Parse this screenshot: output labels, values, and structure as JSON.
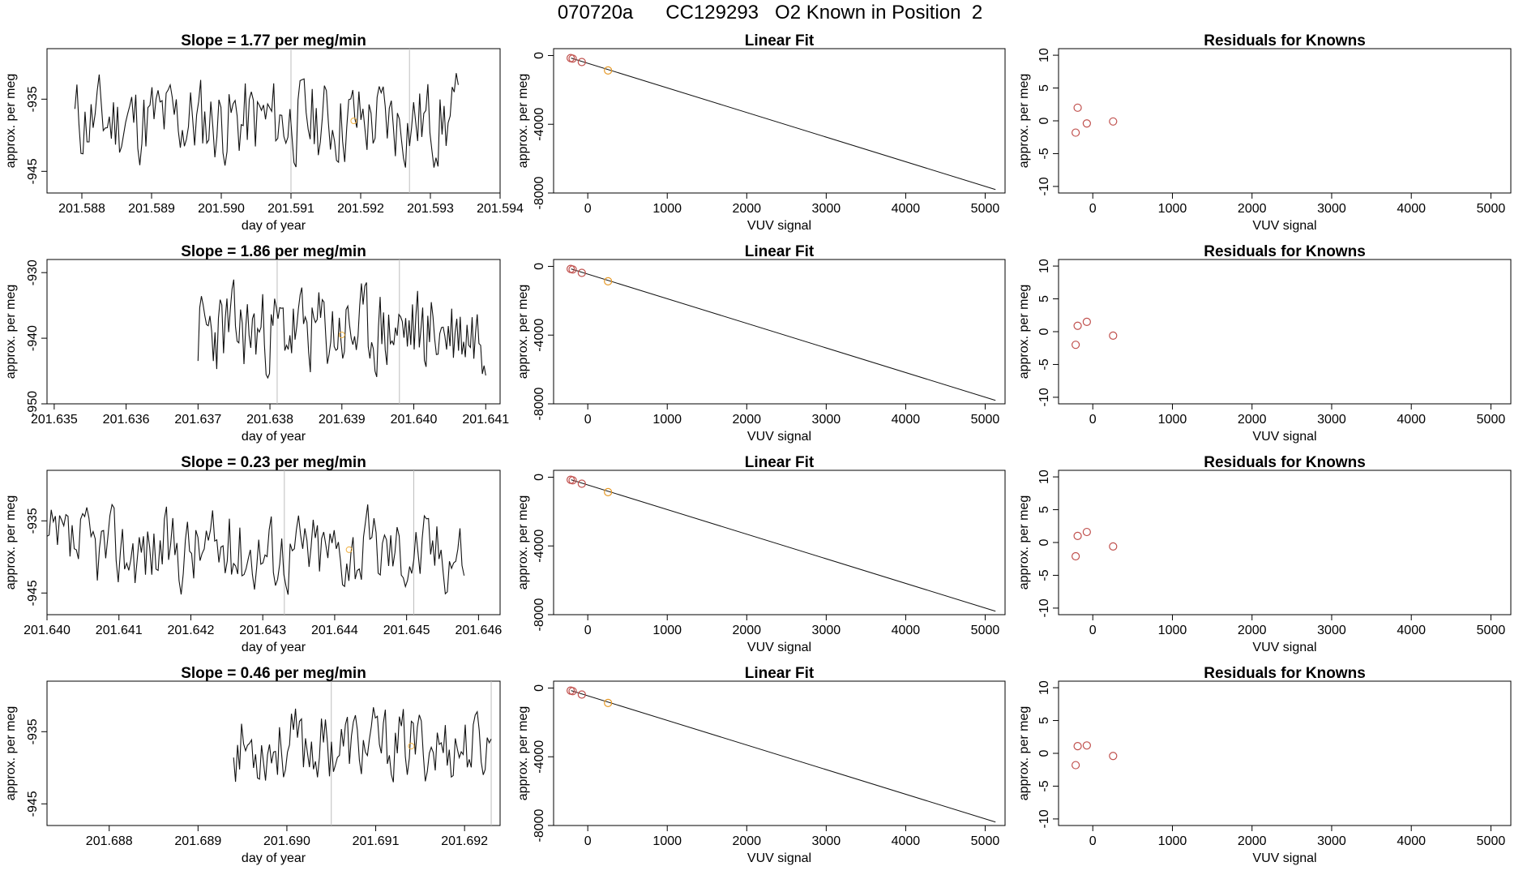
{
  "header": {
    "title": "070720a      CC129293   O2 Known in Position  2"
  },
  "chart_data": [
    {
      "type": "line",
      "panel": "timeseries",
      "row": 1,
      "title": "Slope =  1.77  per meg/min",
      "xlabel": "day of year",
      "ylabel": "approx. per meg",
      "xlim": [
        201.5875,
        201.594
      ],
      "ylim": [
        -948,
        -928
      ],
      "xticks": [
        "201.588",
        "201.589",
        "201.590",
        "201.591",
        "201.592",
        "201.593",
        "201.594"
      ],
      "yticks": [
        "-945",
        "-935"
      ],
      "x_start": 201.5879,
      "x_end": 201.5934,
      "vlines": [
        201.591,
        201.5927
      ],
      "marker": {
        "x": 201.5919,
        "y": -938
      },
      "level": -938,
      "amp": 5.5,
      "seed": 11,
      "n": 190
    },
    {
      "type": "line",
      "panel": "timeseries",
      "row": 2,
      "title": "Slope =  1.86  per meg/min",
      "xlabel": "day of year",
      "ylabel": "approx. per meg",
      "xlim": [
        201.6349,
        201.6412
      ],
      "ylim": [
        -950,
        -928
      ],
      "xticks": [
        "201.635",
        "201.636",
        "201.637",
        "201.638",
        "201.639",
        "201.640",
        "201.641"
      ],
      "yticks": [
        "-950",
        "-940",
        "-930"
      ],
      "x_start": 201.637,
      "x_end": 201.641,
      "vlines": [
        201.6381,
        201.6398
      ],
      "marker": {
        "x": 201.639,
        "y": -939.5
      },
      "level": -939,
      "amp": 6.0,
      "seed": 23,
      "n": 170
    },
    {
      "type": "line",
      "panel": "timeseries",
      "row": 3,
      "title": "Slope =  0.23  per meg/min",
      "xlabel": "day of year",
      "ylabel": "approx. per meg",
      "xlim": [
        201.64,
        201.6463
      ],
      "ylim": [
        -948,
        -928
      ],
      "xticks": [
        "201.640",
        "201.641",
        "201.642",
        "201.643",
        "201.644",
        "201.645",
        "201.646"
      ],
      "yticks": [
        "-945",
        "-935"
      ],
      "x_start": 201.64,
      "x_end": 201.6458,
      "vlines": [
        201.6433,
        201.6451
      ],
      "marker": {
        "x": 201.6442,
        "y": -939
      },
      "level": -939,
      "amp": 5.0,
      "seed": 37,
      "n": 200
    },
    {
      "type": "line",
      "panel": "timeseries",
      "row": 4,
      "title": "Slope =  0.46  per meg/min",
      "xlabel": "day of year",
      "ylabel": "approx. per meg",
      "xlim": [
        201.6873,
        201.6924
      ],
      "ylim": [
        -948,
        -928
      ],
      "xticks": [
        "201.688",
        "201.689",
        "201.690",
        "201.691",
        "201.692"
      ],
      "yticks": [
        "-945",
        "-935"
      ],
      "x_start": 201.6894,
      "x_end": 201.6923,
      "vlines": [
        201.6905,
        201.6923
      ],
      "marker": {
        "x": 201.6914,
        "y": -937
      },
      "level": -937,
      "amp": 4.5,
      "seed": 53,
      "n": 130
    },
    {
      "type": "scatter",
      "panel": "linearfit",
      "rows": [
        1,
        2,
        3,
        4
      ],
      "title": "Linear Fit",
      "xlabel": "VUV signal",
      "ylabel": "approx. per meg",
      "xlim": [
        -430,
        5250
      ],
      "ylim": [
        -8000,
        400
      ],
      "xticks": [
        0,
        1000,
        2000,
        3000,
        4000,
        5000
      ],
      "yticks": [
        0,
        -4000,
        -8000
      ],
      "line": {
        "x1": -210,
        "y1": -150,
        "x2": 5130,
        "y2": -7800
      },
      "points": [
        {
          "x": -215,
          "y": -150,
          "color": "#c0504d"
        },
        {
          "x": -190,
          "y": -180,
          "color": "#c0504d"
        },
        {
          "x": -75,
          "y": -380,
          "color": "#c0504d"
        },
        {
          "x": 255,
          "y": -870,
          "color": "#e69a28"
        }
      ]
    },
    {
      "type": "scatter",
      "panel": "residuals",
      "title": "Residuals for Knowns",
      "xlabel": "VUV signal",
      "ylabel": "approx. per meg",
      "xlim": [
        -430,
        5250
      ],
      "ylim": [
        -11,
        11
      ],
      "xticks": [
        0,
        1000,
        2000,
        3000,
        4000,
        5000
      ],
      "yticks": [
        -10,
        -5,
        0,
        5,
        10
      ],
      "rows": [
        {
          "row": 1,
          "points": [
            {
              "x": -215,
              "y": -1.8
            },
            {
              "x": -190,
              "y": 2.0
            },
            {
              "x": -75,
              "y": -0.4
            },
            {
              "x": 255,
              "y": -0.1
            }
          ]
        },
        {
          "row": 2,
          "points": [
            {
              "x": -215,
              "y": -2.0
            },
            {
              "x": -190,
              "y": 0.9
            },
            {
              "x": -75,
              "y": 1.5
            },
            {
              "x": 255,
              "y": -0.6
            }
          ]
        },
        {
          "row": 3,
          "points": [
            {
              "x": -215,
              "y": -2.1
            },
            {
              "x": -190,
              "y": 1.0
            },
            {
              "x": -75,
              "y": 1.6
            },
            {
              "x": 255,
              "y": -0.6
            }
          ]
        },
        {
          "row": 4,
          "points": [
            {
              "x": -215,
              "y": -1.8
            },
            {
              "x": -190,
              "y": 1.1
            },
            {
              "x": -75,
              "y": 1.2
            },
            {
              "x": 255,
              "y": -0.4
            }
          ]
        }
      ],
      "color": "#c0504d"
    }
  ]
}
